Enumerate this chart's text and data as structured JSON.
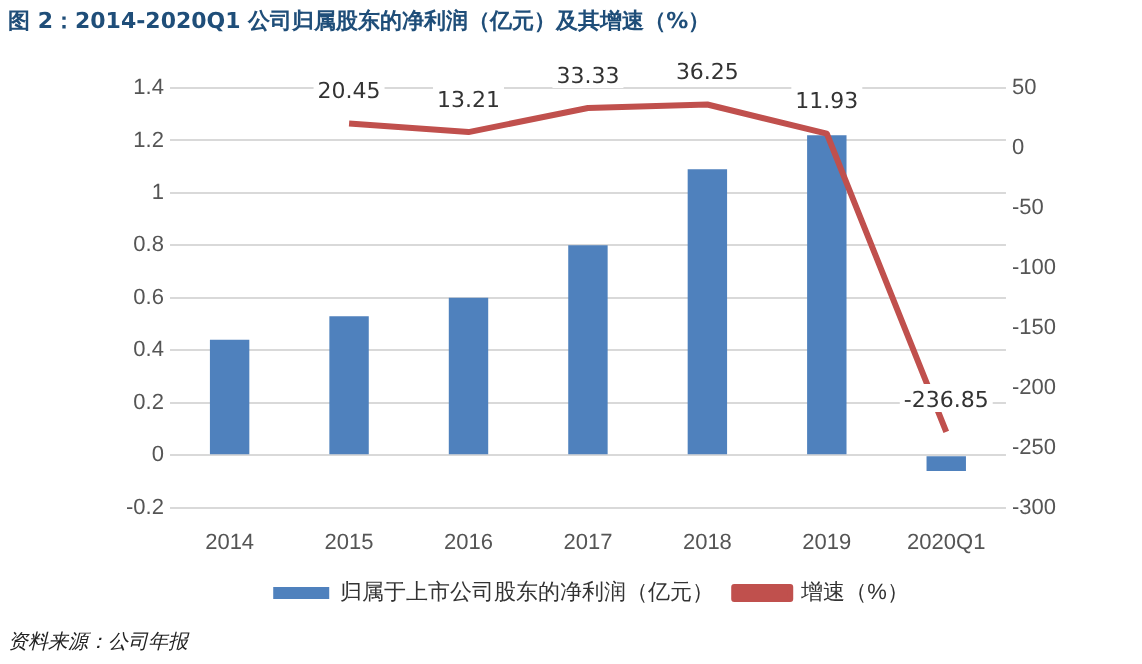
{
  "chart_data": {
    "type": "bar",
    "title": "图 2：2014-2020Q1 公司归属股东的净利润（亿元）及其增速（%）",
    "categories": [
      "2014",
      "2015",
      "2016",
      "2017",
      "2018",
      "2019",
      "2020Q1"
    ],
    "series": [
      {
        "name": "归属于上市公司股东的净利润（亿元）",
        "color": "#4f81bd",
        "values": [
          0.44,
          0.53,
          0.6,
          0.8,
          1.09,
          1.22,
          -0.06
        ]
      },
      {
        "name": "增速（%）",
        "type": "line",
        "axis": "y2",
        "color": "#c0504d",
        "values": [
          null,
          20.45,
          13.21,
          33.33,
          36.25,
          11.93,
          -236.85
        ],
        "value_labels": [
          null,
          "20.45",
          "13.21",
          "33.33",
          "36.25",
          "11.93",
          "-236.85"
        ]
      }
    ],
    "ylim": [
      -0.2,
      1.4
    ],
    "yticks": [
      -0.2,
      0,
      0.2,
      0.4,
      0.6,
      0.8,
      1,
      1.2,
      1.4
    ],
    "y2lim": [
      -300,
      50
    ],
    "y2ticks": [
      -300,
      -250,
      -200,
      -150,
      -100,
      -50,
      0,
      50
    ],
    "grid": "y",
    "legend": "bottom",
    "marker": "none",
    "annotations": [
      "资料来源：公司年报"
    ]
  }
}
